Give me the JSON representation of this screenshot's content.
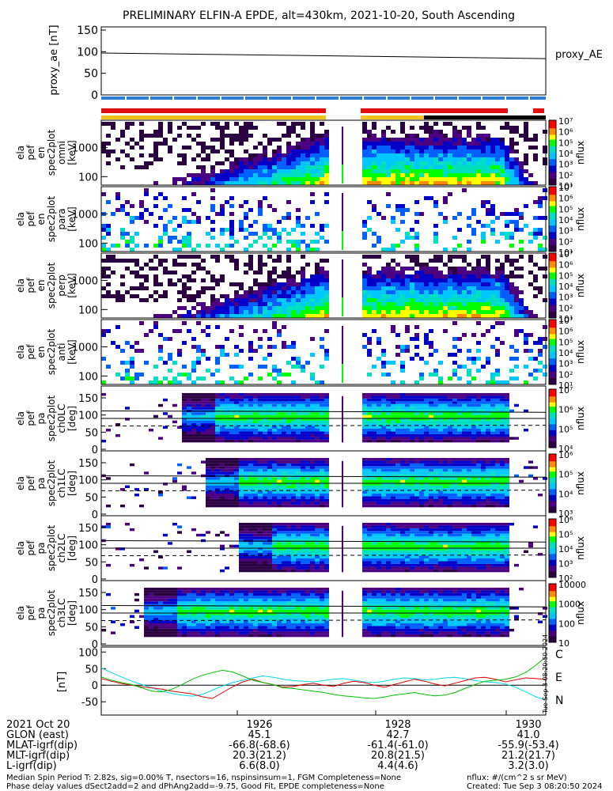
{
  "title": "PRELIMINARY ELFIN-A EPDE, alt=430km, 2021-10-20, South Ascending",
  "panels": {
    "proxy_ae": {
      "ylabel": "proxy_ae [nT]",
      "ytick_labels": [
        "150",
        "100",
        "50",
        "0"
      ],
      "legend": "proxy_AE",
      "ylim": [
        0,
        150
      ],
      "start_value": 97,
      "end_value": 84,
      "line_color": "#000000"
    },
    "bars": {
      "blue": "#2f7fd6",
      "red": "#e01010",
      "yellow": "#f2c21b",
      "black": "#000000"
    },
    "energy": [
      {
        "ylabel": [
          "ela",
          "pef",
          "en",
          "spec2plot",
          "omni",
          "[keV]"
        ],
        "ytick_labels": [
          "1000",
          "100"
        ],
        "cbar_label": "nflux",
        "cbar_ticks": [
          "10⁷",
          "10⁶",
          "10⁵",
          "10⁴",
          "10³",
          "10²",
          "10¹"
        ]
      },
      {
        "ylabel": [
          "ela",
          "pef",
          "en",
          "spec2plot",
          "para",
          "[keV]"
        ],
        "ytick_labels": [
          "1000",
          "100"
        ],
        "cbar_label": "nflux",
        "cbar_ticks": [
          "10⁷",
          "10⁶",
          "10⁵",
          "10⁴",
          "10³",
          "10²",
          "10¹"
        ]
      },
      {
        "ylabel": [
          "ela",
          "pef",
          "en",
          "spec2plot",
          "perp",
          "[keV]"
        ],
        "ytick_labels": [
          "1000",
          "100"
        ],
        "cbar_label": "nflux",
        "cbar_ticks": [
          "10⁷",
          "10⁶",
          "10⁵",
          "10⁴",
          "10³",
          "10²",
          "10¹"
        ]
      },
      {
        "ylabel": [
          "ela",
          "pef",
          "en",
          "spec2plot",
          "anti",
          "[keV]"
        ],
        "ytick_labels": [
          "1000",
          "100"
        ],
        "cbar_label": "nflux",
        "cbar_ticks": [
          "10⁷",
          "10⁶",
          "10⁵",
          "10⁴",
          "10³",
          "10²",
          "10¹"
        ]
      }
    ],
    "pitch": [
      {
        "ylabel": [
          "ela",
          "pef",
          "pa",
          "spec2plot",
          "ch0LC",
          "[deg]"
        ],
        "ytick_labels": [
          "150",
          "100",
          "50",
          "0"
        ],
        "cbar_label": "nflux",
        "cbar_ticks": [
          "10⁷",
          "10⁶",
          "10⁵",
          "10⁴"
        ]
      },
      {
        "ylabel": [
          "ela",
          "pef",
          "pa",
          "spec2plot",
          "ch1LC",
          "[deg]"
        ],
        "ytick_labels": [
          "150",
          "100",
          "50",
          "0"
        ],
        "cbar_label": "nflux",
        "cbar_ticks": [
          "10⁶",
          "10⁵",
          "10⁴",
          "10³"
        ]
      },
      {
        "ylabel": [
          "ela",
          "pef",
          "pa",
          "spec2plot",
          "ch2LC",
          "[deg]"
        ],
        "ytick_labels": [
          "150",
          "100",
          "50",
          "0"
        ],
        "cbar_label": "nflux",
        "cbar_ticks": [
          "10⁶",
          "10⁵",
          "10⁴",
          "10³",
          "10²"
        ]
      },
      {
        "ylabel": [
          "ela",
          "pef",
          "pa",
          "spec2plot",
          "ch3LC",
          "[deg]"
        ],
        "ytick_labels": [
          "150",
          "100",
          "50",
          "0"
        ],
        "cbar_label": "nflux",
        "cbar_ticks": [
          "10000",
          "1000",
          "100",
          "10"
        ]
      }
    ],
    "field": {
      "ylabel": "[nT]",
      "ytick_labels": [
        "100",
        "50",
        "0",
        "-50"
      ],
      "ylim": [
        -90,
        115
      ],
      "legend": [
        {
          "name": "C",
          "color": "#00d8e8"
        },
        {
          "name": "E",
          "color": "#e00000"
        },
        {
          "name": "N",
          "color": "#00c000"
        }
      ],
      "series": {
        "C": [
          52,
          38,
          25,
          12,
          2,
          -8,
          -18,
          -25,
          -30,
          -33,
          -28,
          -15,
          -2,
          8,
          15,
          22,
          28,
          24,
          18,
          14,
          12,
          10,
          14,
          18,
          20,
          15,
          10,
          8,
          12,
          18,
          22,
          20,
          16,
          18,
          22,
          24,
          20,
          14,
          10,
          8,
          4,
          -6,
          -20,
          -35,
          -45
        ],
        "E": [
          20,
          12,
          5,
          0,
          -5,
          -8,
          -12,
          -18,
          -22,
          -26,
          -35,
          -40,
          -22,
          -5,
          10,
          18,
          8,
          2,
          -6,
          -4,
          2,
          6,
          0,
          -4,
          6,
          12,
          8,
          0,
          -6,
          2,
          10,
          18,
          12,
          4,
          -2,
          6,
          14,
          22,
          24,
          18,
          10,
          16,
          22,
          20,
          18
        ],
        "N": [
          25,
          15,
          8,
          2,
          -8,
          -18,
          -20,
          -12,
          2,
          18,
          30,
          38,
          45,
          40,
          28,
          15,
          8,
          2,
          -8,
          -10,
          -14,
          -18,
          -22,
          -28,
          -32,
          -35,
          -38,
          -40,
          -36,
          -30,
          -26,
          -22,
          -28,
          -32,
          -30,
          -22,
          -10,
          2,
          12,
          15,
          18,
          25,
          38,
          60,
          85
        ]
      }
    },
    "colorbar_colors": [
      "#ff0000",
      "#ff8c00",
      "#ffff00",
      "#00ff00",
      "#00e0c0",
      "#00c8ff",
      "#0060ff",
      "#0000c8",
      "#4b0082",
      "#2a0040"
    ],
    "side_text": "Tue Sep 3 08:20:50 2024"
  },
  "footer": {
    "row_labels": [
      "2021 Oct 20",
      "GLON (east)",
      "MLAT-igrf(dip)",
      "MLT-igrf(dip)",
      "L-igrf(dip)"
    ],
    "times": [
      "1926",
      "1928",
      "1930"
    ],
    "columns": [
      [
        "45.1",
        "-66.8(-68.6)",
        "20.3(21.2)",
        "6.6(8.0)"
      ],
      [
        "42.7",
        "-61.4(-61.0)",
        "20.8(21.5)",
        "4.4(4.6)"
      ],
      [
        "41.0",
        "-55.9(-53.4)",
        "21.2(21.7)",
        "3.2(3.0)"
      ]
    ],
    "note1": "Median Spin Period T: 2.82s, sig=0.00% T, nsectors=16, nspinsinsum=1, FGM Completeness=None",
    "note2": "Phase delay values dSect2add=2 and dPhAng2add=-9.75, Good Fit, EPDE completeness=None",
    "note3": "nflux: #/(cm^2 s sr MeV)",
    "note4": "Created: Tue Sep  3 08:20:50 2024"
  }
}
